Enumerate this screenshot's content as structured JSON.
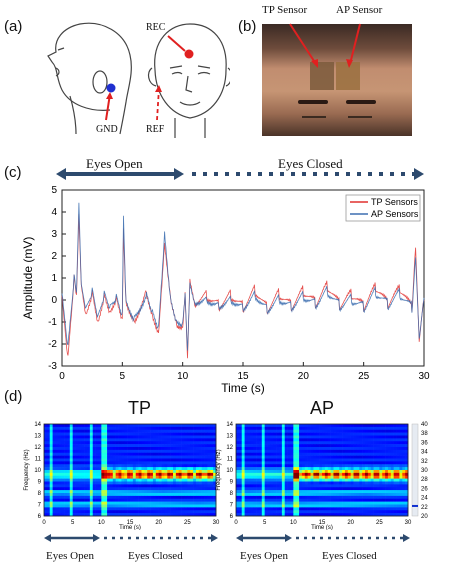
{
  "panel_a": {
    "label": "(a)",
    "rec": "REC",
    "gnd": "GND",
    "ref": "REF"
  },
  "panel_b": {
    "label": "(b)",
    "tp_sensor": "TP Sensor",
    "ap_sensor": "AP Sensor"
  },
  "panel_c": {
    "label": "(c)",
    "eyes_open": "Eyes Open",
    "eyes_closed": "Eyes Closed"
  },
  "panel_d": {
    "label": "(d)",
    "tp_title": "TP",
    "ap_title": "AP",
    "eyes_open": "Eyes Open",
    "eyes_closed": "Eyes Closed"
  },
  "colors": {
    "tp": "#e0312f",
    "ap": "#3d6fb0",
    "arrow": "#2d4a6e",
    "rec_dot": "#e02020",
    "gnd_dot": "#2030d0"
  },
  "chart_data": [
    {
      "type": "line",
      "title": "",
      "xlabel": "Time (s)",
      "ylabel": "Amplitude (mV)",
      "xlim": [
        0,
        30
      ],
      "ylim": [
        -3,
        5
      ],
      "xticks": [
        "0",
        "5",
        "10",
        "15",
        "20",
        "25",
        "30"
      ],
      "yticks": [
        "-3",
        "-2",
        "-1",
        "0",
        "1",
        "2",
        "3",
        "4",
        "5"
      ],
      "legend": "top-right",
      "series": [
        {
          "name": "TP Sensors",
          "x": [
            0,
            0.5,
            1,
            1.2,
            1.4,
            1.6,
            2,
            2.5,
            3,
            3.5,
            4,
            4.5,
            5,
            5.1,
            5.3,
            6,
            7,
            7.5,
            8,
            8.5,
            9,
            9.5,
            10,
            10.2,
            10.4,
            10.6,
            11,
            12,
            13,
            14,
            15,
            16,
            17,
            18,
            19,
            20,
            21,
            22,
            23,
            24,
            25,
            26,
            27,
            28,
            29,
            29.3,
            29.6,
            30
          ],
          "y": [
            0.2,
            -2.5,
            1.2,
            0.3,
            4.0,
            0.8,
            -0.5,
            0.6,
            -0.8,
            0.5,
            -0.3,
            0.4,
            -0.6,
            3.5,
            0.2,
            -0.7,
            0.6,
            -0.4,
            -1.2,
            2.9,
            0.4,
            -0.8,
            -1.0,
            0.6,
            -2.4,
            1.2,
            0.0,
            0.3,
            -0.2,
            0.3,
            -0.3,
            0.5,
            -0.4,
            0.3,
            -0.3,
            0.4,
            -0.2,
            0.6,
            -0.3,
            0.2,
            -0.4,
            0.5,
            -0.3,
            0.4,
            -0.5,
            2.4,
            -1.9,
            0.0
          ]
        },
        {
          "name": "AP Sensors",
          "x": [
            0,
            0.5,
            1,
            1.2,
            1.4,
            1.6,
            2,
            2.5,
            3,
            3.5,
            4,
            4.5,
            5,
            5.1,
            5.3,
            6,
            7,
            7.5,
            8,
            8.5,
            9,
            9.5,
            10,
            10.2,
            10.4,
            10.6,
            11,
            12,
            13,
            14,
            15,
            16,
            17,
            18,
            19,
            20,
            21,
            22,
            23,
            24,
            25,
            26,
            27,
            28,
            29,
            29.3,
            29.6,
            30
          ],
          "y": [
            0.1,
            -2.2,
            1.0,
            0.2,
            4.3,
            0.6,
            -0.4,
            0.5,
            -0.7,
            0.4,
            -0.2,
            0.3,
            -0.5,
            3.9,
            0.1,
            -0.6,
            0.5,
            -0.3,
            -1.0,
            3.3,
            0.3,
            -0.7,
            -0.8,
            0.5,
            -2.1,
            1.0,
            0.1,
            0.2,
            -0.1,
            0.2,
            -0.2,
            0.4,
            -0.3,
            0.2,
            -0.2,
            0.3,
            -0.1,
            0.5,
            -0.2,
            0.1,
            -0.3,
            0.4,
            -0.2,
            0.3,
            -0.4,
            2.1,
            -1.6,
            0.1
          ]
        }
      ]
    },
    {
      "type": "heatmap",
      "title": "TP",
      "xlabel": "Time (s)",
      "ylabel": "Frequency (Hz)",
      "xlim": [
        0,
        30
      ],
      "ylim": [
        6,
        14
      ],
      "xticks": [
        "0",
        "5",
        "10",
        "15",
        "20",
        "25",
        "30"
      ],
      "yticks": [
        "6",
        "7",
        "8",
        "9",
        "10",
        "11",
        "12",
        "13",
        "14"
      ]
    },
    {
      "type": "heatmap",
      "title": "AP",
      "xlabel": "Time (s)",
      "ylabel": "Frequency (Hz)",
      "xlim": [
        0,
        30
      ],
      "ylim": [
        6,
        14
      ],
      "xticks": [
        "0",
        "5",
        "10",
        "15",
        "20",
        "25",
        "30"
      ],
      "yticks": [
        "6",
        "7",
        "8",
        "9",
        "10",
        "11",
        "12",
        "13",
        "14"
      ],
      "colorbar_ticks": [
        "20",
        "22",
        "24",
        "26",
        "28",
        "30",
        "32",
        "34",
        "36",
        "38",
        "40"
      ]
    }
  ]
}
